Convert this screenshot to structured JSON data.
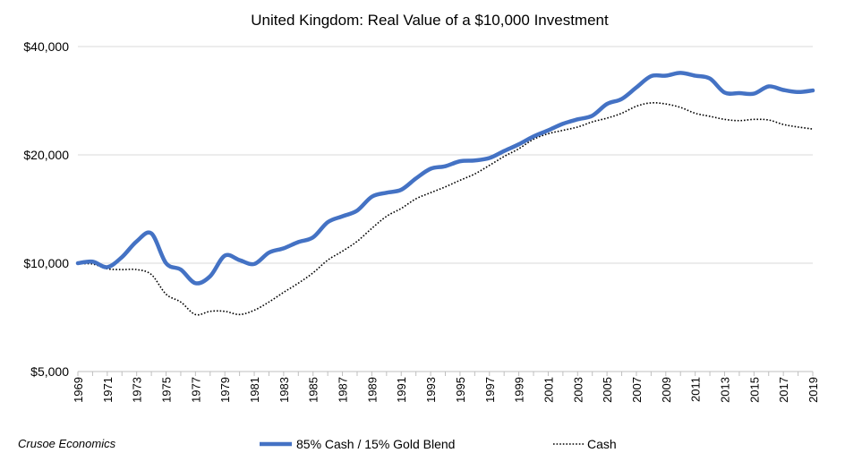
{
  "chart_data": {
    "type": "line",
    "title": "United Kingdom: Real Value of a $10,000 Investment",
    "xlabel": "",
    "ylabel": "",
    "y_scale": "log",
    "ylim": [
      5000,
      40000
    ],
    "xlim": [
      1969,
      2019
    ],
    "yticks": [
      5000,
      10000,
      20000,
      40000
    ],
    "ytick_labels": [
      "$5,000",
      "$10,000",
      "$20,000",
      "$40,000"
    ],
    "xticks": [
      1969,
      1971,
      1973,
      1975,
      1977,
      1979,
      1981,
      1983,
      1985,
      1987,
      1989,
      1991,
      1993,
      1995,
      1997,
      1999,
      2001,
      2003,
      2005,
      2007,
      2009,
      2011,
      2013,
      2015,
      2017,
      2019
    ],
    "grid": "horizontal",
    "legend_position": "bottom",
    "source_note": "Crusoe Economics",
    "x": [
      1969,
      1970,
      1971,
      1972,
      1973,
      1974,
      1975,
      1976,
      1977,
      1978,
      1979,
      1980,
      1981,
      1982,
      1983,
      1984,
      1985,
      1986,
      1987,
      1988,
      1989,
      1990,
      1991,
      1992,
      1993,
      1994,
      1995,
      1996,
      1997,
      1998,
      1999,
      2000,
      2001,
      2002,
      2003,
      2004,
      2005,
      2006,
      2007,
      2008,
      2009,
      2010,
      2011,
      2012,
      2013,
      2014,
      2015,
      2016,
      2017,
      2018,
      2019
    ],
    "series": [
      {
        "name": "85% Cash / 15% Gold Blend",
        "color": "#4472C4",
        "style": "solid",
        "values": [
          10000,
          10100,
          9750,
          10400,
          11500,
          12100,
          10000,
          9600,
          8800,
          9200,
          10500,
          10200,
          9950,
          10700,
          11000,
          11450,
          11800,
          13000,
          13500,
          14000,
          15300,
          15700,
          16000,
          17200,
          18300,
          18600,
          19200,
          19300,
          19600,
          20500,
          21400,
          22500,
          23400,
          24400,
          25100,
          25700,
          27700,
          28600,
          30800,
          33100,
          33200,
          33800,
          33200,
          32600,
          29800,
          29700,
          29600,
          31000,
          30300,
          29900,
          30200
        ]
      },
      {
        "name": "Cash",
        "color": "#000000",
        "style": "dotted",
        "values": [
          9950,
          9950,
          9650,
          9600,
          9600,
          9300,
          8200,
          7800,
          7200,
          7350,
          7350,
          7200,
          7400,
          7800,
          8300,
          8800,
          9400,
          10200,
          10800,
          11500,
          12500,
          13500,
          14200,
          15100,
          15700,
          16300,
          17000,
          17700,
          18700,
          19800,
          20800,
          22100,
          22900,
          23400,
          23900,
          24700,
          25300,
          26100,
          27300,
          27900,
          27700,
          27100,
          26100,
          25600,
          25100,
          24900,
          25100,
          25000,
          24300,
          23900,
          23600
        ]
      }
    ]
  }
}
